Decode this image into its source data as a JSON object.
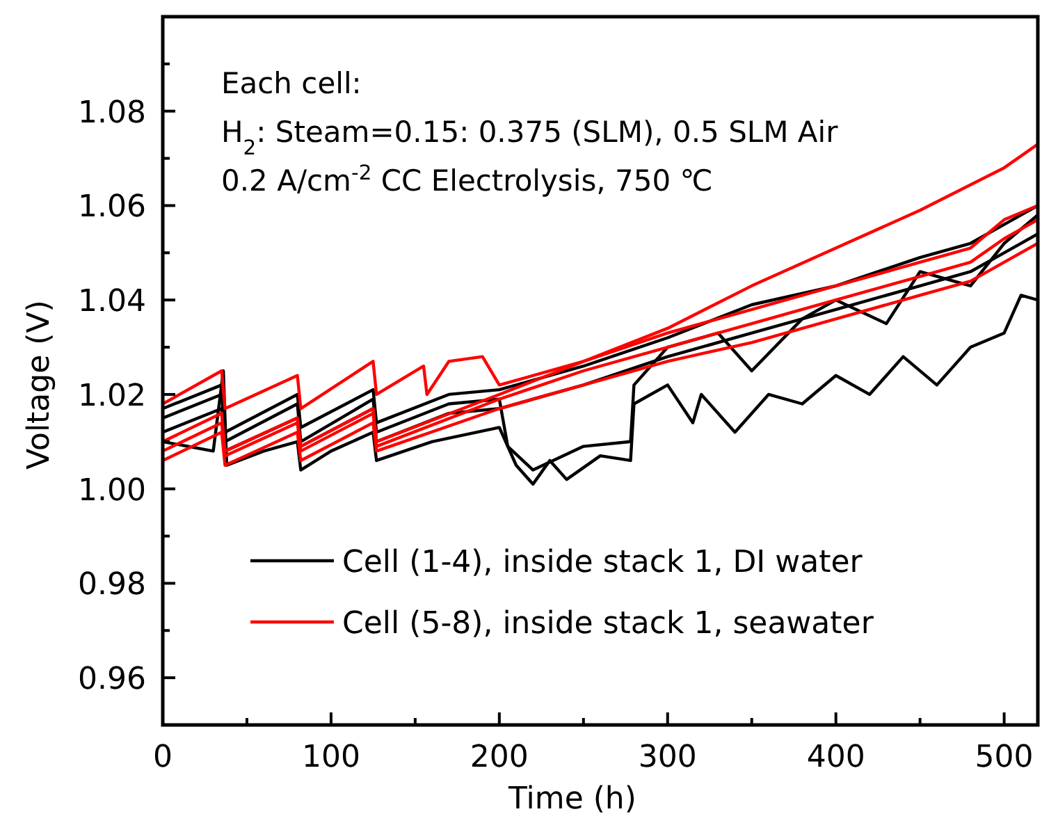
{
  "chart_data": {
    "type": "line",
    "xlabel": "Time (h)",
    "ylabel": "Voltage (V)",
    "xlim": [
      0,
      520
    ],
    "xticks": [
      0,
      {
        "value": 50,
        "label": null
      },
      100,
      {
        "value": 150,
        "label": null
      },
      200,
      {
        "value": 250,
        "label": null
      },
      300,
      {
        "value": 350,
        "label": null
      },
      400,
      {
        "value": 450,
        "label": null
      },
      500
    ],
    "ylim": [
      0.95,
      1.1
    ],
    "yticks": [
      {
        "value": 0.95,
        "label": null
      },
      0.96,
      {
        "value": 0.97,
        "label": null
      },
      0.98,
      {
        "value": 0.99,
        "label": null
      },
      "1.00",
      {
        "value": 1.01,
        "label": null
      },
      1.02,
      {
        "value": 1.03,
        "label": null
      },
      1.04,
      {
        "value": 1.05,
        "label": null
      },
      1.06,
      {
        "value": 1.07,
        "label": null
      },
      1.08,
      {
        "value": 1.09,
        "label": null
      }
    ],
    "annotations": [
      "Each cell:",
      "H$_{2}$: Steam=0.15: 0.375 (SLM), 0.5 SLM Air",
      "0.2 A/cm$^{-2}$ CC Electrolysis, 750 ℃"
    ],
    "legend": "bottom",
    "marker": "none",
    "line_style": "solid",
    "grid": false,
    "series": [
      {
        "name": "Cell (1-4), inside stack 1, DI water",
        "color": "#000000",
        "x": [
          0,
          30,
          36,
          38,
          60,
          80,
          82,
          100,
          125,
          127,
          160,
          200,
          210,
          220,
          230,
          240,
          260,
          278,
          280,
          300,
          315,
          320,
          340,
          360,
          380,
          400,
          420,
          440,
          460,
          480,
          500,
          510,
          520
        ],
        "values": [
          1.01,
          1.008,
          1.025,
          1.005,
          1.008,
          1.01,
          1.004,
          1.008,
          1.012,
          1.006,
          1.01,
          1.013,
          1.005,
          1.001,
          1.006,
          1.002,
          1.007,
          1.006,
          1.018,
          1.022,
          1.014,
          1.02,
          1.012,
          1.02,
          1.018,
          1.024,
          1.02,
          1.028,
          1.022,
          1.03,
          1.033,
          1.041,
          1.04
        ]
      },
      {
        "color": "#000000",
        "x": [
          0,
          35,
          37,
          80,
          82,
          125,
          127,
          170,
          200,
          205,
          220,
          250,
          278,
          280,
          300,
          330,
          350,
          380,
          400,
          430,
          450,
          480,
          500,
          520
        ],
        "values": [
          1.015,
          1.02,
          1.01,
          1.018,
          1.01,
          1.019,
          1.012,
          1.018,
          1.019,
          1.009,
          1.004,
          1.009,
          1.01,
          1.022,
          1.03,
          1.033,
          1.025,
          1.036,
          1.04,
          1.035,
          1.046,
          1.043,
          1.052,
          1.058
        ]
      },
      {
        "color": "#000000",
        "x": [
          0,
          35,
          37,
          80,
          82,
          125,
          127,
          170,
          200,
          250,
          300,
          350,
          400,
          450,
          480,
          500,
          520
        ],
        "values": [
          1.017,
          1.022,
          1.012,
          1.02,
          1.013,
          1.021,
          1.014,
          1.02,
          1.021,
          1.026,
          1.032,
          1.039,
          1.043,
          1.049,
          1.052,
          1.056,
          1.06
        ]
      },
      {
        "color": "#000000",
        "x": [
          0,
          35,
          37,
          80,
          82,
          125,
          127,
          170,
          200,
          250,
          300,
          350,
          400,
          450,
          480,
          500,
          520
        ],
        "values": [
          1.012,
          1.017,
          1.008,
          1.015,
          1.009,
          1.017,
          1.01,
          1.016,
          1.017,
          1.022,
          1.028,
          1.033,
          1.038,
          1.043,
          1.046,
          1.05,
          1.054
        ]
      },
      {
        "name": "Cell (5-8), inside stack 1, seawater",
        "color": "#ff0000",
        "x": [
          0,
          35,
          37,
          80,
          82,
          125,
          127,
          155,
          157,
          170,
          190,
          200,
          250,
          300,
          350,
          400,
          450,
          500,
          520
        ],
        "values": [
          1.018,
          1.025,
          1.017,
          1.024,
          1.017,
          1.027,
          1.02,
          1.026,
          1.02,
          1.027,
          1.028,
          1.022,
          1.027,
          1.034,
          1.043,
          1.051,
          1.059,
          1.068,
          1.073
        ]
      },
      {
        "color": "#ff0000",
        "x": [
          0,
          35,
          37,
          80,
          82,
          125,
          127,
          200,
          250,
          300,
          350,
          400,
          450,
          480,
          500,
          520
        ],
        "values": [
          1.01,
          1.016,
          1.008,
          1.015,
          1.009,
          1.017,
          1.01,
          1.02,
          1.027,
          1.033,
          1.038,
          1.043,
          1.048,
          1.051,
          1.057,
          1.06
        ]
      },
      {
        "color": "#ff0000",
        "x": [
          0,
          35,
          37,
          80,
          82,
          125,
          127,
          200,
          250,
          300,
          350,
          400,
          450,
          480,
          500,
          520
        ],
        "values": [
          1.008,
          1.014,
          1.007,
          1.014,
          1.008,
          1.016,
          1.009,
          1.019,
          1.025,
          1.03,
          1.035,
          1.04,
          1.045,
          1.048,
          1.053,
          1.057
        ]
      },
      {
        "color": "#ff0000",
        "x": [
          0,
          35,
          37,
          80,
          82,
          125,
          127,
          200,
          250,
          300,
          350,
          400,
          450,
          480,
          500,
          520
        ],
        "values": [
          1.006,
          1.012,
          1.005,
          1.012,
          1.006,
          1.014,
          1.008,
          1.017,
          1.022,
          1.027,
          1.031,
          1.036,
          1.041,
          1.044,
          1.048,
          1.052
        ]
      }
    ]
  }
}
